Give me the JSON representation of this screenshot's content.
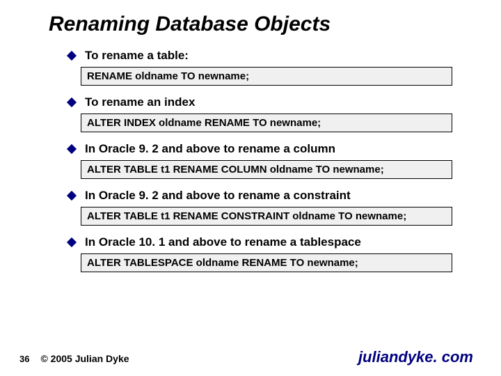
{
  "title": "Renaming Database Objects",
  "items": [
    {
      "label": "To rename a table:",
      "code": "RENAME oldname TO newname;"
    },
    {
      "label": "To rename an index",
      "code": "ALTER INDEX oldname RENAME TO newname;"
    },
    {
      "label": "In Oracle 9. 2 and above to rename a column",
      "code": "ALTER TABLE t1 RENAME COLUMN oldname TO newname;"
    },
    {
      "label": "In Oracle 9. 2 and above to rename a constraint",
      "code": "ALTER TABLE t1 RENAME CONSTRAINT oldname TO newname;"
    },
    {
      "label": "In Oracle 10. 1 and above to rename a tablespace",
      "code": "ALTER TABLESPACE  oldname RENAME TO newname;"
    }
  ],
  "footer": {
    "page": "36",
    "copyright": "© 2005 Julian Dyke",
    "url": "juliandyke. com"
  },
  "colors": {
    "bullet": "#000080",
    "url": "#000080",
    "codebg": "#f0f0f0"
  }
}
